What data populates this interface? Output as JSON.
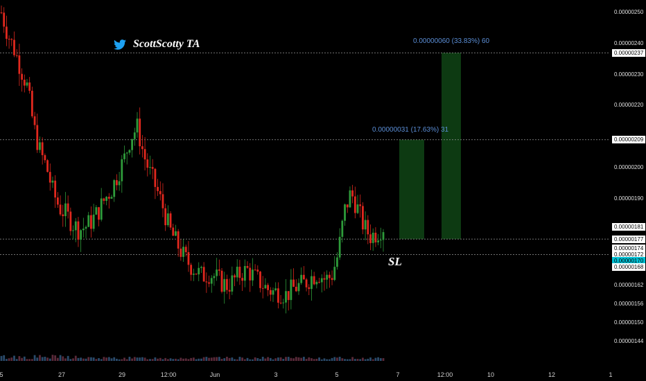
{
  "watermark": {
    "icon": "twitter-bird-icon",
    "text": "ScottScotty TA"
  },
  "colors": {
    "up": "#2e9b3a",
    "down": "#e0281e",
    "zone": "#0d3a12",
    "accent": "#00c2d6",
    "target_text": "#5b8ed6"
  },
  "annotations": {
    "target1": "0.00000031 (17.63%) 31",
    "target2": "0.00000060 (33.83%) 60",
    "sl": "SL"
  },
  "chart_data": {
    "type": "candlestick",
    "y_axis_ticks": [
      "0.00000250",
      "0.00000240",
      "0.00000230",
      "0.00000220",
      "0.00000200",
      "0.00000190",
      "0.00000162",
      "0.00000156",
      "0.00000150",
      "0.00000144"
    ],
    "y_axis_tick_values": [
      2.5e-06,
      2.4e-06,
      2.3e-06,
      2.2e-06,
      2e-06,
      1.9e-06,
      1.62e-06,
      1.56e-06,
      1.5e-06,
      1.44e-06
    ],
    "x_axis_ticks": [
      "5",
      "27",
      "29",
      "12:00",
      "Jun",
      "3",
      "5",
      "7",
      "12:00",
      "10",
      "12",
      "1"
    ],
    "ylim": [
      1.41e-06,
      2.53e-06
    ],
    "price_boxes": [
      {
        "label": "0.00000237",
        "value": 2.37e-06,
        "style": "white"
      },
      {
        "label": "0.00000209",
        "value": 2.09e-06,
        "style": "white"
      },
      {
        "label": "0.00000181",
        "value": 1.81e-06,
        "style": "white"
      },
      {
        "label": "0.00000177",
        "value": 1.77e-06,
        "style": "white"
      },
      {
        "label": "0.00000174",
        "value": 1.74e-06,
        "style": "white"
      },
      {
        "label": "0.00000172",
        "value": 1.72e-06,
        "style": "white"
      },
      {
        "label": "0.00000170",
        "value": 1.7e-06,
        "style": "accent"
      },
      {
        "label": "0.00000168",
        "value": 1.68e-06,
        "style": "white"
      }
    ],
    "levels": {
      "entry": 1.77e-06,
      "stop_loss": 1.72e-06,
      "target1": 2.09e-06,
      "target2": 2.37e-06
    },
    "price_path": [
      2.5e-06,
      2.43e-06,
      2.38e-06,
      2.32e-06,
      2.26e-06,
      2.13e-06,
      2.05e-06,
      2e-06,
      1.92e-06,
      1.87e-06,
      1.85e-06,
      1.82e-06,
      1.8e-06,
      1.81e-06,
      1.83e-06,
      1.86e-06,
      1.9e-06,
      1.93e-06,
      1.98e-06,
      2.03e-06,
      2.1e-06,
      2.13e-06,
      2.04e-06,
      1.98e-06,
      1.93e-06,
      1.87e-06,
      1.8e-06,
      1.76e-06,
      1.72e-06,
      1.69e-06,
      1.67e-06,
      1.65e-06,
      1.66e-06,
      1.65e-06,
      1.63e-06,
      1.62e-06,
      1.64e-06,
      1.66e-06,
      1.67e-06,
      1.65e-06,
      1.63e-06,
      1.61e-06,
      1.6e-06,
      1.6e-06,
      1.59e-06,
      1.61e-06,
      1.62e-06,
      1.63e-06,
      1.65e-06,
      1.66e-06,
      1.64e-06,
      1.65e-06,
      1.72e-06,
      1.86e-06,
      1.92e-06,
      1.87e-06,
      1.81e-06,
      1.78e-06,
      1.79e-06,
      1.81e-06
    ]
  }
}
